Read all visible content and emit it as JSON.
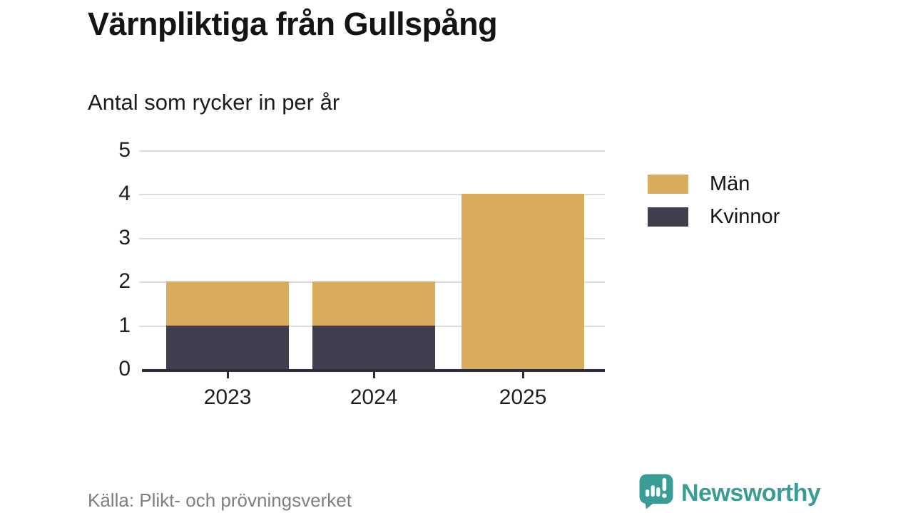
{
  "header": {
    "title": "Värnpliktiga från Gullspång",
    "subtitle": "Antal som rycker in per år"
  },
  "chart_data": {
    "type": "bar",
    "stacked": true,
    "title": "Värnpliktiga från Gullspång",
    "subtitle": "Antal som rycker in per år",
    "categories": [
      "2023",
      "2024",
      "2025"
    ],
    "series": [
      {
        "name": "Män",
        "color": "#d8ac5c",
        "values": [
          1,
          1,
          4
        ]
      },
      {
        "name": "Kvinnor",
        "color": "#413e50",
        "values": [
          1,
          1,
          0
        ]
      }
    ],
    "stack_bottom_to_top": [
      "Kvinnor",
      "Män"
    ],
    "totals": [
      2,
      2,
      4
    ],
    "xlabel": "",
    "ylabel": "",
    "ylim": [
      0,
      5
    ],
    "yticks": [
      0,
      1,
      2,
      3,
      4,
      5
    ],
    "grid": true,
    "legend_position": "right"
  },
  "legend": {
    "items": [
      {
        "label": "Män",
        "color": "#d8ac5c"
      },
      {
        "label": "Kvinnor",
        "color": "#413e50"
      }
    ]
  },
  "footer": {
    "source": "Källa: Plikt- och prövningsverket",
    "brand": "Newsworthy",
    "brand_color": "#3a9d95",
    "logo_icon": "speech-bubble-bar-chart-icon"
  },
  "colors": {
    "grid": "#dcdcdc",
    "axis": "#2e2c38",
    "text": "#1f1f1f",
    "muted": "#7f7f7f"
  }
}
